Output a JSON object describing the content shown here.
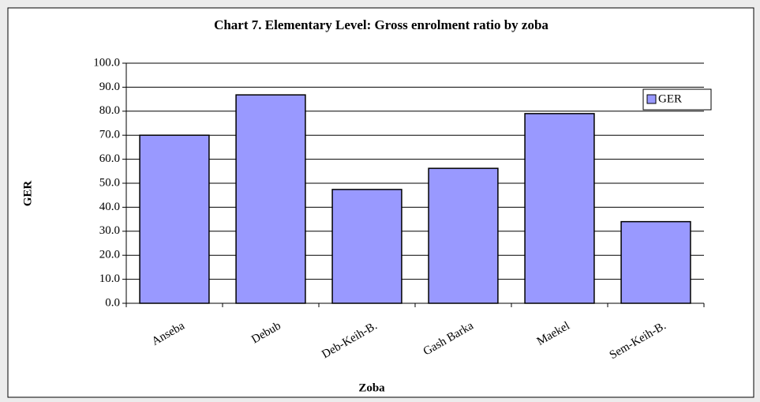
{
  "chart_data": {
    "type": "bar",
    "title": "Chart 7. Elementary Level: Gross enrolment ratio by zoba",
    "x_label": "Zoba",
    "y_label": "GER",
    "categories": [
      "Anseba",
      "Debub",
      "Deb-Keih-B.",
      "Gash Barka",
      "Maekel",
      "Sem-Keih-B."
    ],
    "series": [
      {
        "name": "GER",
        "color": "#9999ff",
        "values": [
          70.0,
          86.8,
          47.4,
          56.2,
          79.0,
          34.0
        ]
      }
    ],
    "ylim": [
      0,
      100
    ],
    "yticks": [
      {
        "value": 0,
        "label": "0.0"
      },
      {
        "value": 10,
        "label": "10.0"
      },
      {
        "value": 20,
        "label": "20.0"
      },
      {
        "value": 30,
        "label": "30.0"
      },
      {
        "value": 40,
        "label": "40.0"
      },
      {
        "value": 50,
        "label": "50.0"
      },
      {
        "value": 60,
        "label": "60.0"
      },
      {
        "value": 70,
        "label": "70.0"
      },
      {
        "value": 80,
        "label": "80.0"
      },
      {
        "value": 90,
        "label": "90.0"
      },
      {
        "value": 100,
        "label": "100.0"
      }
    ],
    "grid": true,
    "legend": "upper right"
  }
}
